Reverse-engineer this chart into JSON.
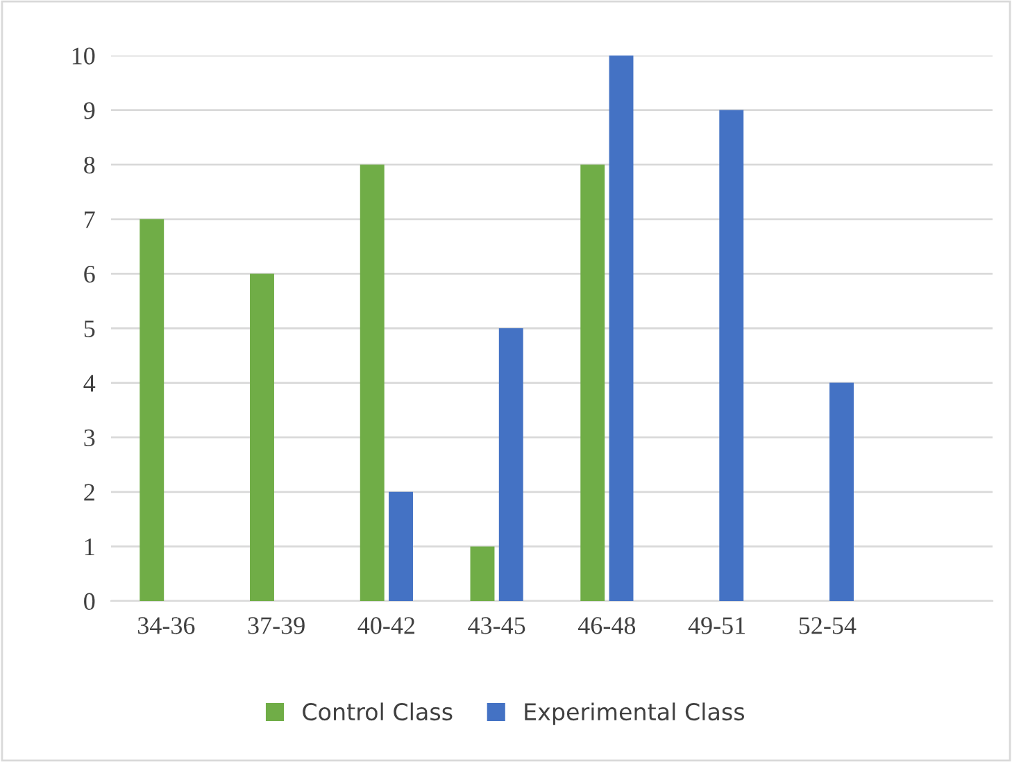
{
  "chart_data": {
    "type": "bar",
    "categories": [
      "34-36",
      "37-39",
      "40-42",
      "43-45",
      "46-48",
      "49-51",
      "52-54",
      null
    ],
    "series": [
      {
        "name": "Control Class",
        "color": "#70ad47",
        "values": [
          7,
          6,
          8,
          1,
          8,
          0,
          0,
          null
        ]
      },
      {
        "name": "Experimental Class",
        "color": "#4472c4",
        "values": [
          0,
          0,
          2,
          5,
          10,
          9,
          4,
          null
        ]
      }
    ],
    "ylim": [
      0,
      10
    ],
    "yticks": [
      0,
      1,
      2,
      3,
      4,
      5,
      6,
      7,
      8,
      9,
      10
    ],
    "grid": "y",
    "legend": "bottom"
  }
}
